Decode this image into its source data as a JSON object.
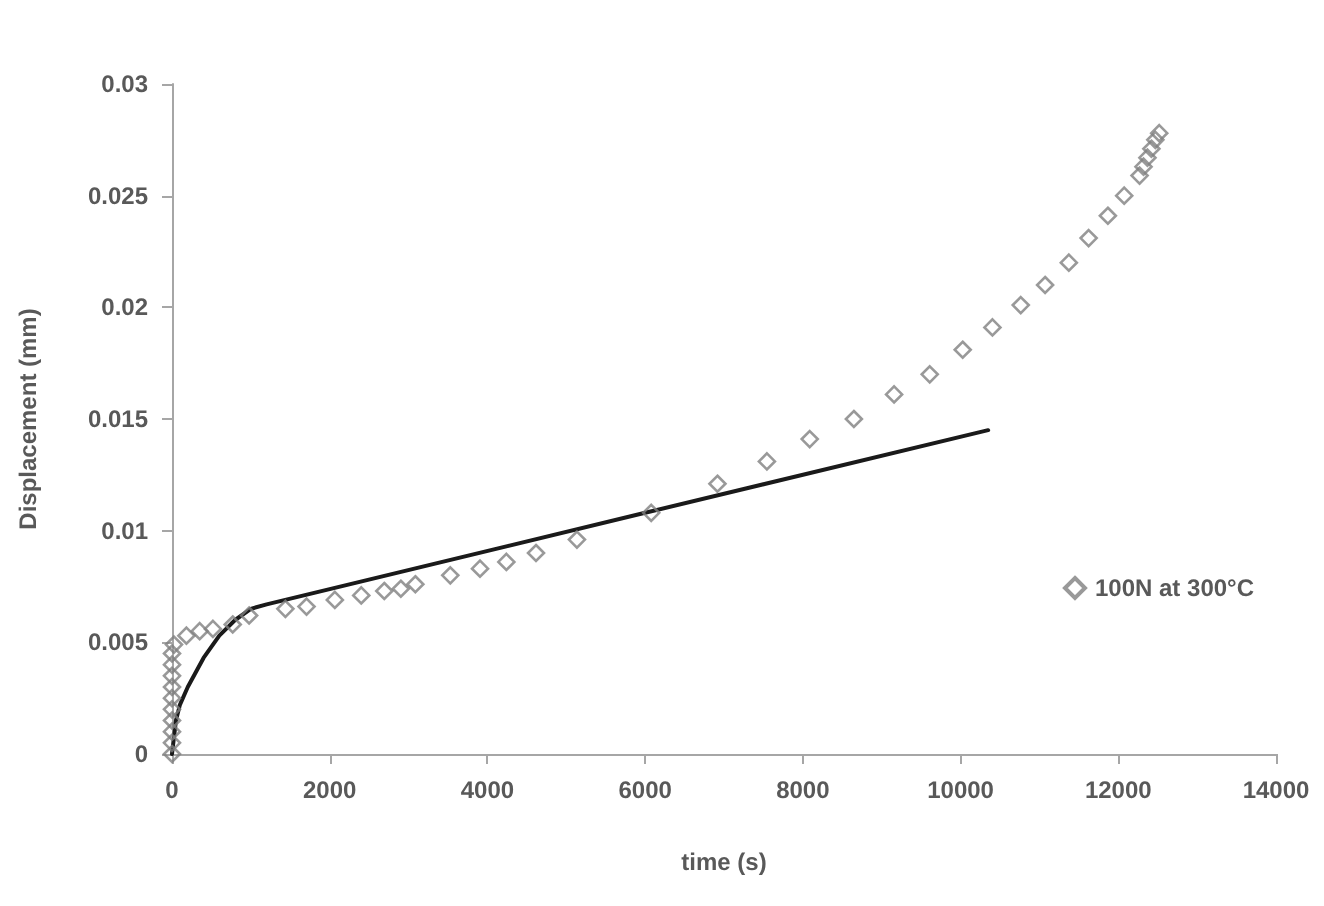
{
  "chart_data": {
    "type": "scatter",
    "xlabel": "time (s)",
    "ylabel": "Displacement (mm)",
    "xlim": [
      0,
      14000
    ],
    "xticks": [
      0,
      2000,
      4000,
      6000,
      8000,
      10000,
      12000,
      14000
    ],
    "ylim": [
      0,
      0.03
    ],
    "yticks": [
      0,
      0.005,
      0.01,
      0.015,
      0.02,
      0.025,
      0.03
    ],
    "grid": false,
    "legend": "right",
    "series": [
      {
        "name": "100N at 300°C",
        "marker": "diamond",
        "color": "#7f7f7f",
        "x": [
          0,
          0,
          0,
          0,
          0,
          0,
          0,
          0,
          0,
          0,
          25,
          183,
          351,
          519,
          770,
          978,
          1438,
          1706,
          2065,
          2400,
          2692,
          2902,
          3086,
          3529,
          3906,
          4240,
          4616,
          5135,
          6077,
          6917,
          7544,
          8087,
          8647,
          9157,
          9609,
          10027,
          10404,
          10763,
          11072,
          11373,
          11624,
          11868,
          12075,
          12270,
          12320,
          12370,
          12420,
          12470,
          12519
        ],
        "values": [
          0,
          0.0005,
          0.001,
          0.0015,
          0.002,
          0.0025,
          0.003,
          0.0035,
          0.004,
          0.0045,
          0.0049,
          0.0053,
          0.0055,
          0.0056,
          0.0058,
          0.0062,
          0.0065,
          0.0066,
          0.0069,
          0.0071,
          0.0073,
          0.0074,
          0.0076,
          0.008,
          0.0083,
          0.0086,
          0.009,
          0.0096,
          0.0108,
          0.0121,
          0.0131,
          0.0141,
          0.015,
          0.0161,
          0.017,
          0.0181,
          0.0191,
          0.0201,
          0.021,
          0.022,
          0.0231,
          0.0241,
          0.025,
          0.0259,
          0.0263,
          0.0267,
          0.0271,
          0.0275,
          0.0278
        ]
      },
      {
        "type": "line",
        "marker": "none",
        "line_style": "solid",
        "color": "#1a1a1a",
        "x": [
          0,
          50,
          100,
          200,
          400,
          600,
          800,
          1000,
          1200,
          6000,
          10350
        ],
        "values": [
          0,
          0.0015,
          0.0022,
          0.003,
          0.0043,
          0.0053,
          0.006,
          0.0065,
          0.0067,
          0.0108,
          0.0145
        ]
      }
    ]
  }
}
